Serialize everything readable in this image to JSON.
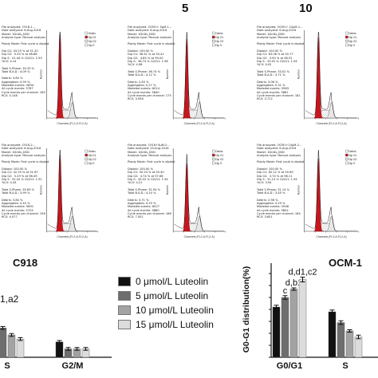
{
  "header": {
    "dose_5": "5",
    "dose_10": "10"
  },
  "cell_lines": {
    "left": "C918",
    "right": "OCM-1"
  },
  "left_bar_annotation": "1,a2",
  "legend": [
    {
      "label": "0   μmol/L Luteolin",
      "color": "#111111"
    },
    {
      "label": "5   μmol/L Luteolin",
      "color": "#6e6e6e"
    },
    {
      "label": "10 μmol/L Luteolin",
      "color": "#a3a3a3"
    },
    {
      "label": "15 μmol/L Luteolin",
      "color": "#dcdcdc"
    }
  ],
  "flow_panels": [
    {
      "text_left": "File analyzed: C918-1...\nDate analyzed: 6-Aug-2016\nModel: 1DnDs_DSD\nAnalysis type: Manual analysis\n\nPloidy Mode: First cycle is diploid\n\nDip G1: 43.23 % at 51.20\nDip G2:  5.33 % at 98.86\nDip S:  51.44 % G2/G1: 1.93\n%CV: 4.14\n\nTotal S-Phase: 35.33 %\nTotal B.A.D.: 4.09 %\n\nDebris: 4.84 %\nAggregates: 0.99 %\nModeled events: 5894\nAll cycle events: 5767\nCycle events per channel: 160\nRCS: 4.148",
      "legend_items": [
        "Debris",
        "Dip G1",
        "Dip G2",
        "Dip S"
      ],
      "xlabel": "Channels (FL2-A-FL2-A)",
      "ylabel": "Number"
    },
    {
      "text_left": "File analyzed: OCM1+ 5μM-1...\nDate analyzed: 6-Aug-2016\nModel: 1DnDs_DSD\nAnalysis type: Manual analysis\n\nPloidy Mode: First cycle is diploid\n\nDiploid: 100.00 %\nDip G1: 58.41 % at 50.41\nDip G2:  4.85 % at 99.00\nDip S:  36.74 % G2/G1: 1.96\n%CV: 4.08\n\nTotal S-Phase: 36.74 %\nTotal B.A.D.: 4.12 %\n\nDebris: 2.83 %\nAggregates: 0.27 %\nModeled events: 6014\nAll cycle events: 5840\nCycle events per channel: 175\nRCS: 3.936",
      "legend_items": [
        "Debris",
        "Dip G1",
        "Dip G2",
        "Dip S"
      ],
      "xlabel": "Channels (FL2-A-FL2-A)",
      "ylabel": "Number"
    },
    {
      "text_left": "File analyzed: OCM1+ 10μM-1...\nDate analyzed: 6-Aug-2016\nModel: 1DnDs_DSD\nAnalysis type: Manual analysis\n\nPloidy Mode: First cycle is diploid\n\nDiploid: 100.00 %\nDip G1: 63.08 % at 50.77\nDip G2:  3.90 % at 98.52\nDip S:  33.02 % G2/G1: 1.94\n%CV: 4.02\n\nTotal S-Phase: 33.02 %\nTotal B.A.D.: 3.71 %\n\nDebris: 3.06 %\nAggregates: 0.31 %\nModeled events: 5963\nAll cycle events: 5861\nCycle events per channel: 181\nRCS: 3.712",
      "legend_items": [
        "Debris",
        "Dip G1",
        "Dip G2",
        "Dip S"
      ],
      "xlabel": "Channels (FL2-A-FL2-A)",
      "ylabel": "Number"
    },
    {
      "text_left": "File analyzed: C918-2...\nDate analyzed: 6-Aug-2016\nModel: 1DnDs_DSD\nAnalysis type: Manual analysis\n\nPloidy Mode: First cycle is diploid\n\nDiploid: 100.00 %\nDip G1: 42.29 % at 51.67\nDip G2:  5.29 % at 98.49\nDip S:  52.42 % G2/G1: 1.91\n%CV: 4.43\n\nTotal S-Phase: 35.69 %\nTotal B.A.D.: 3.99 %\n\nDebris: 3.84 %\nAggregates: 0.45 %\nModeled events: 5891\nAll cycle events: 5724\nCycle events per channel: 156\nRCS: 4.077",
      "legend_items": [
        "Debris",
        "Dip G1",
        "Dip G2",
        "Dip S"
      ],
      "xlabel": "Channels (FL2-A-FL2-A)",
      "ylabel": "Number"
    },
    {
      "text_left": "File analyzed: C918+5μM-2...\nDate analyzed: 29-Aug-2016\nModel: 1DnDs_DSD\nAnalysis type: Manual analysis\n\nPloidy Mode: First cycle is diploid\n\nDiploid: 100.00 %\nDip G1: 50.24 % at 50.40\nDip G2:  4.74 % at 97.66\nDip S:  45.02 % G2/G1: 1.94\n%CV: 4.21\n\nTotal S-Phase: 31.94 %\nTotal B.A.D.: 4.10 %\n\nDebris: 3.71 %\nAggregates: 0.53 %\nModeled events: 6027\nAll cycle events: 5880\nCycle events per channel: 166\nRCS: 7.501",
      "legend_items": [
        "Debris",
        "Dip G1",
        "Dip G2",
        "Dip S"
      ],
      "xlabel": "Channels (FL2-A-FL2-A)",
      "ylabel": "Number"
    },
    {
      "text_left": "File analyzed: OCM1+10μM-2...\nDate analyzed: 6-Aug-2016\nModel: 1DnDs_DSD\nAnalysis type: Manual analysis\n\nPloidy Mode: First cycle is diploid\n\nDiploid: 100.00 %\nDip G1: 65.12 % at 50.69\nDip G2:  3.74 % at 98.11\nDip S:  31.14 % G2/G1: 1.94\n%CV: 3.94\n\nTotal S-Phase: 31.14 %\nTotal B.A.D.: 3.45 %\n\nDebris: 2.98 %\nAggregates: 0.29 %\nModeled events: 5948\nAll cycle events: 5842\nCycle events per channel: 184\nRCS: 3.601",
      "legend_items": [
        "Debris",
        "Dip G1",
        "Dip G2",
        "Dip S"
      ],
      "xlabel": "Channels (FL2-A-FL2-A)",
      "ylabel": "Number"
    }
  ],
  "chart_data": [
    {
      "type": "bar",
      "categories": [
        "S",
        "G2/M"
      ],
      "series": [
        {
          "name": "0   μmol/L Luteolin",
          "values": [
            21,
            11
          ],
          "errors": [
            1,
            1
          ]
        },
        {
          "name": "5   μmol/L Luteolin",
          "values": [
            21,
            6
          ],
          "errors": [
            1,
            1
          ]
        },
        {
          "name": "10 μmol/L Luteolin",
          "values": [
            16,
            6
          ],
          "errors": [
            1,
            1
          ]
        },
        {
          "name": "15 μmol/L Luteolin",
          "values": [
            13,
            6
          ],
          "errors": [
            1,
            1
          ]
        }
      ],
      "ylim": [
        0,
        100
      ]
    },
    {
      "type": "bar",
      "categories": [
        "G0/G1",
        "S"
      ],
      "ylabel": "G0-G1 distribution(%)",
      "yticks": [
        0,
        10,
        20,
        30,
        40,
        50,
        60,
        70,
        80
      ],
      "ylim": [
        0,
        80
      ],
      "series": [
        {
          "name": "0   μmol/L Luteolin",
          "values": [
            42,
            38
          ],
          "errors": [
            1.5,
            1.5
          ]
        },
        {
          "name": "5   μmol/L Luteolin",
          "values": [
            50,
            29
          ],
          "errors": [
            1.5,
            1.5
          ]
        },
        {
          "name": "10 μmol/L Luteolin",
          "values": [
            57,
            22
          ],
          "errors": [
            1,
            1
          ]
        },
        {
          "name": "15 μmol/L Luteolin",
          "values": [
            65,
            17
          ],
          "errors": [
            2,
            1.5
          ]
        }
      ],
      "annotations": [
        "c",
        "d,b1",
        "d,d1,c2"
      ]
    }
  ]
}
